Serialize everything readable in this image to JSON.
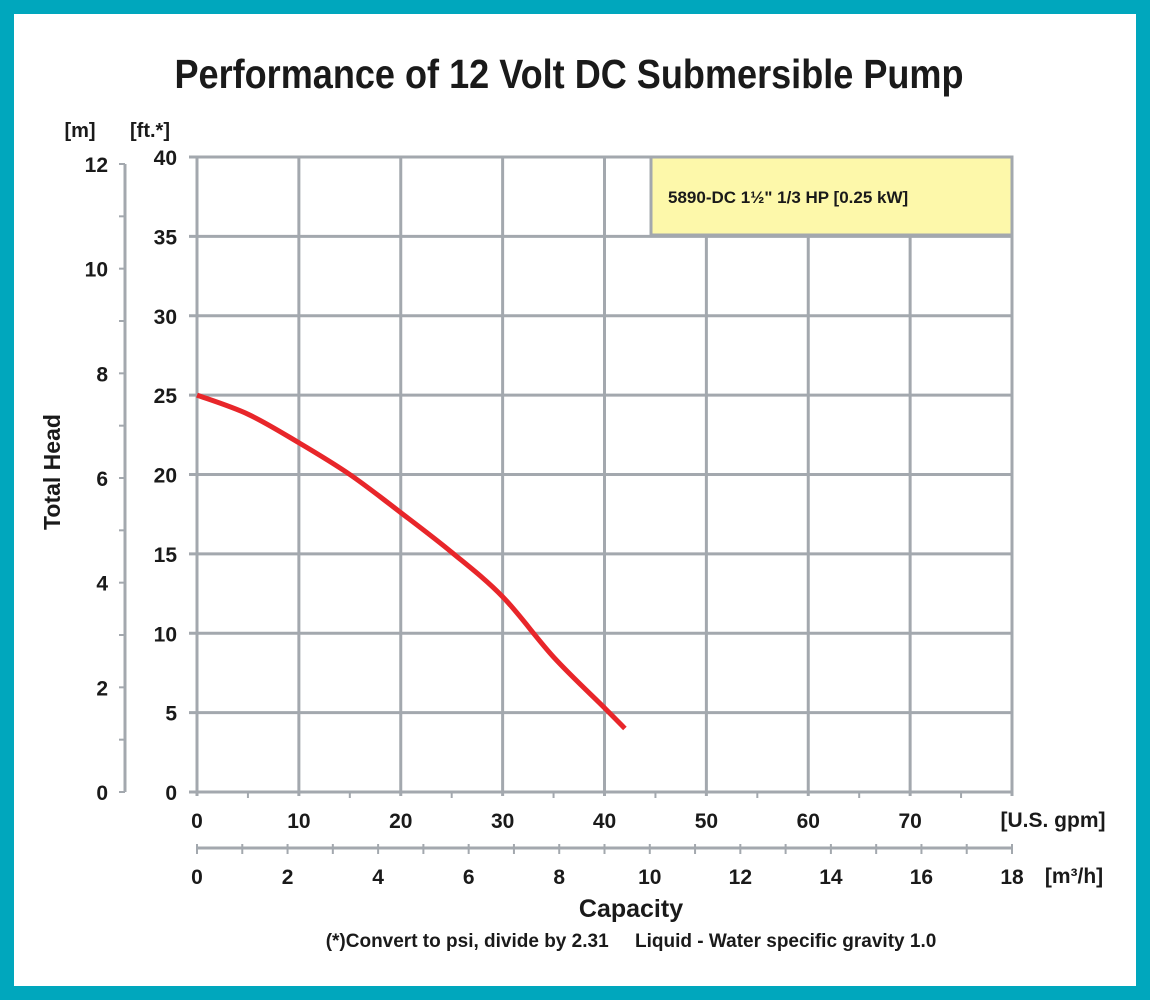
{
  "chart_data": {
    "type": "line",
    "title": "Performance of 12 Volt DC Submersible Pump",
    "ylabel": "Total Head",
    "xlabel": "Capacity",
    "y_units_left": "[m]",
    "y_units_right": "[ft.*]",
    "x_units_top": "[U.S. gpm]",
    "x_units_bottom": "[m³/h]",
    "xlim_gpm": [
      0,
      80
    ],
    "ylim_ft": [
      0,
      40
    ],
    "ylim_m": [
      0,
      12
    ],
    "xlim_m3h": [
      0,
      18
    ],
    "x_ticks_gpm": [
      "0",
      "10",
      "20",
      "30",
      "40",
      "50",
      "60",
      "70"
    ],
    "x_ticks_m3h": [
      "0",
      "2",
      "4",
      "6",
      "8",
      "10",
      "12",
      "14",
      "16",
      "18"
    ],
    "y_ticks_ft": [
      "0",
      "5",
      "10",
      "15",
      "20",
      "25",
      "30",
      "35",
      "40"
    ],
    "y_ticks_m": [
      "0",
      "2",
      "4",
      "6",
      "8",
      "10",
      "12"
    ],
    "grid": true,
    "legend_position": "top-right",
    "series": [
      {
        "name": "5890-DC 1½\" 1/3 HP [0.25 kW]",
        "color": "#e8262a",
        "x": [
          0,
          5,
          10,
          15,
          20,
          25,
          30,
          35,
          40,
          42
        ],
        "y": [
          25,
          23.8,
          22.0,
          20.0,
          17.6,
          15.1,
          12.3,
          8.5,
          5.3,
          4.0
        ]
      }
    ],
    "footnote": "(*)Convert to psi, divide by 2.31     Liquid - Water specific gravity 1.0"
  },
  "colors": {
    "frame": "#00a7bd",
    "grid": "#a3a8ae",
    "legend_bg": "#fdf8aa"
  }
}
